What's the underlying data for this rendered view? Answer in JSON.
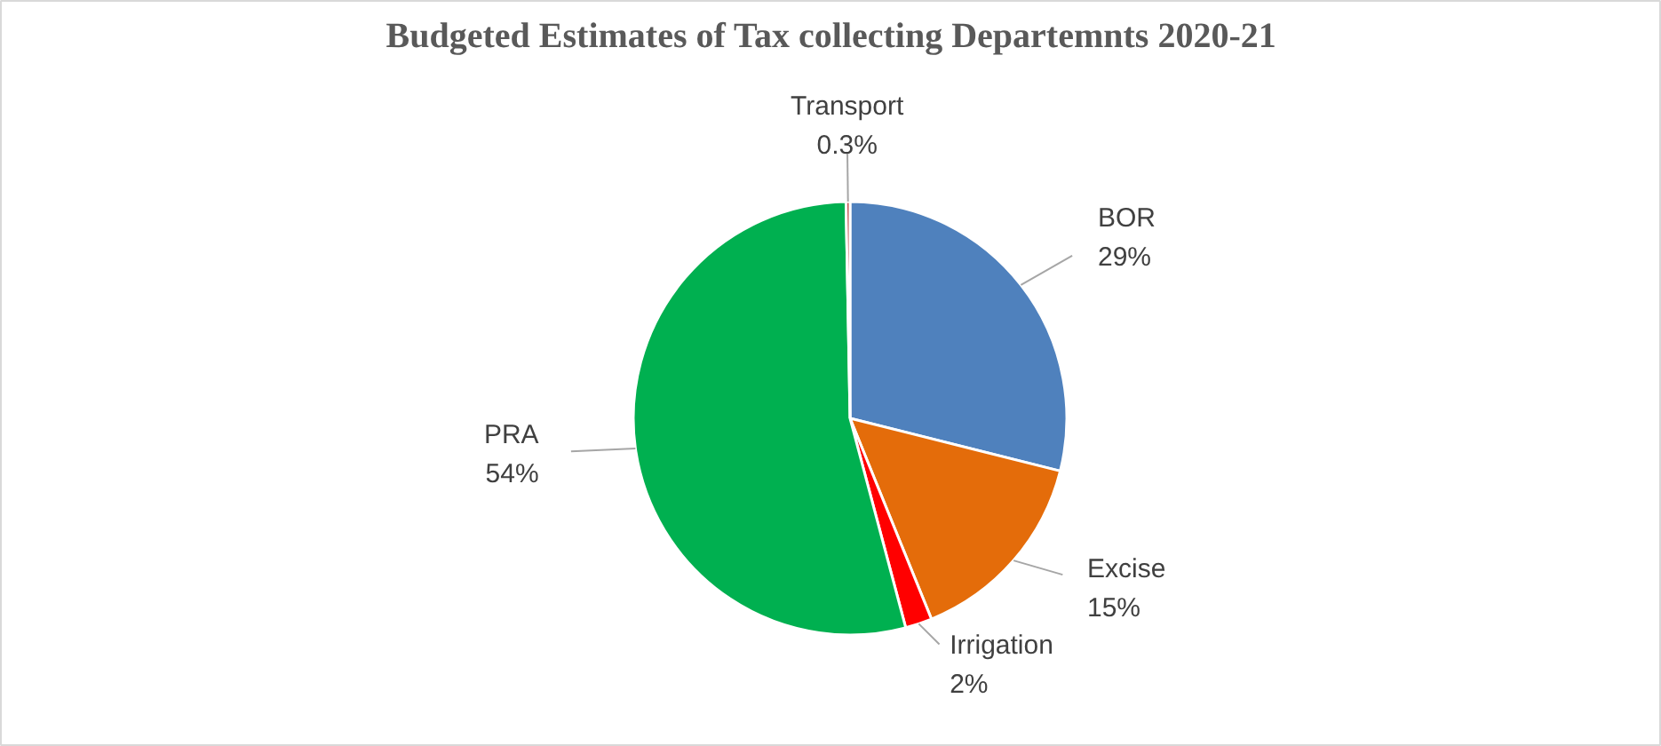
{
  "chart_data": {
    "type": "pie",
    "title": "Budgeted Estimates of Tax collecting Departemnts 2020-21",
    "categories": [
      "BOR",
      "Excise",
      "Irrigation",
      "PRA",
      "Transport"
    ],
    "values": [
      29,
      15,
      2,
      54,
      0.3
    ],
    "colors": [
      "#4f81bd",
      "#e46c0a",
      "#ff0000",
      "#00b050",
      "#c0504d"
    ],
    "value_labels": [
      "29%",
      "15%",
      "2%",
      "54%",
      "0.3%"
    ]
  }
}
